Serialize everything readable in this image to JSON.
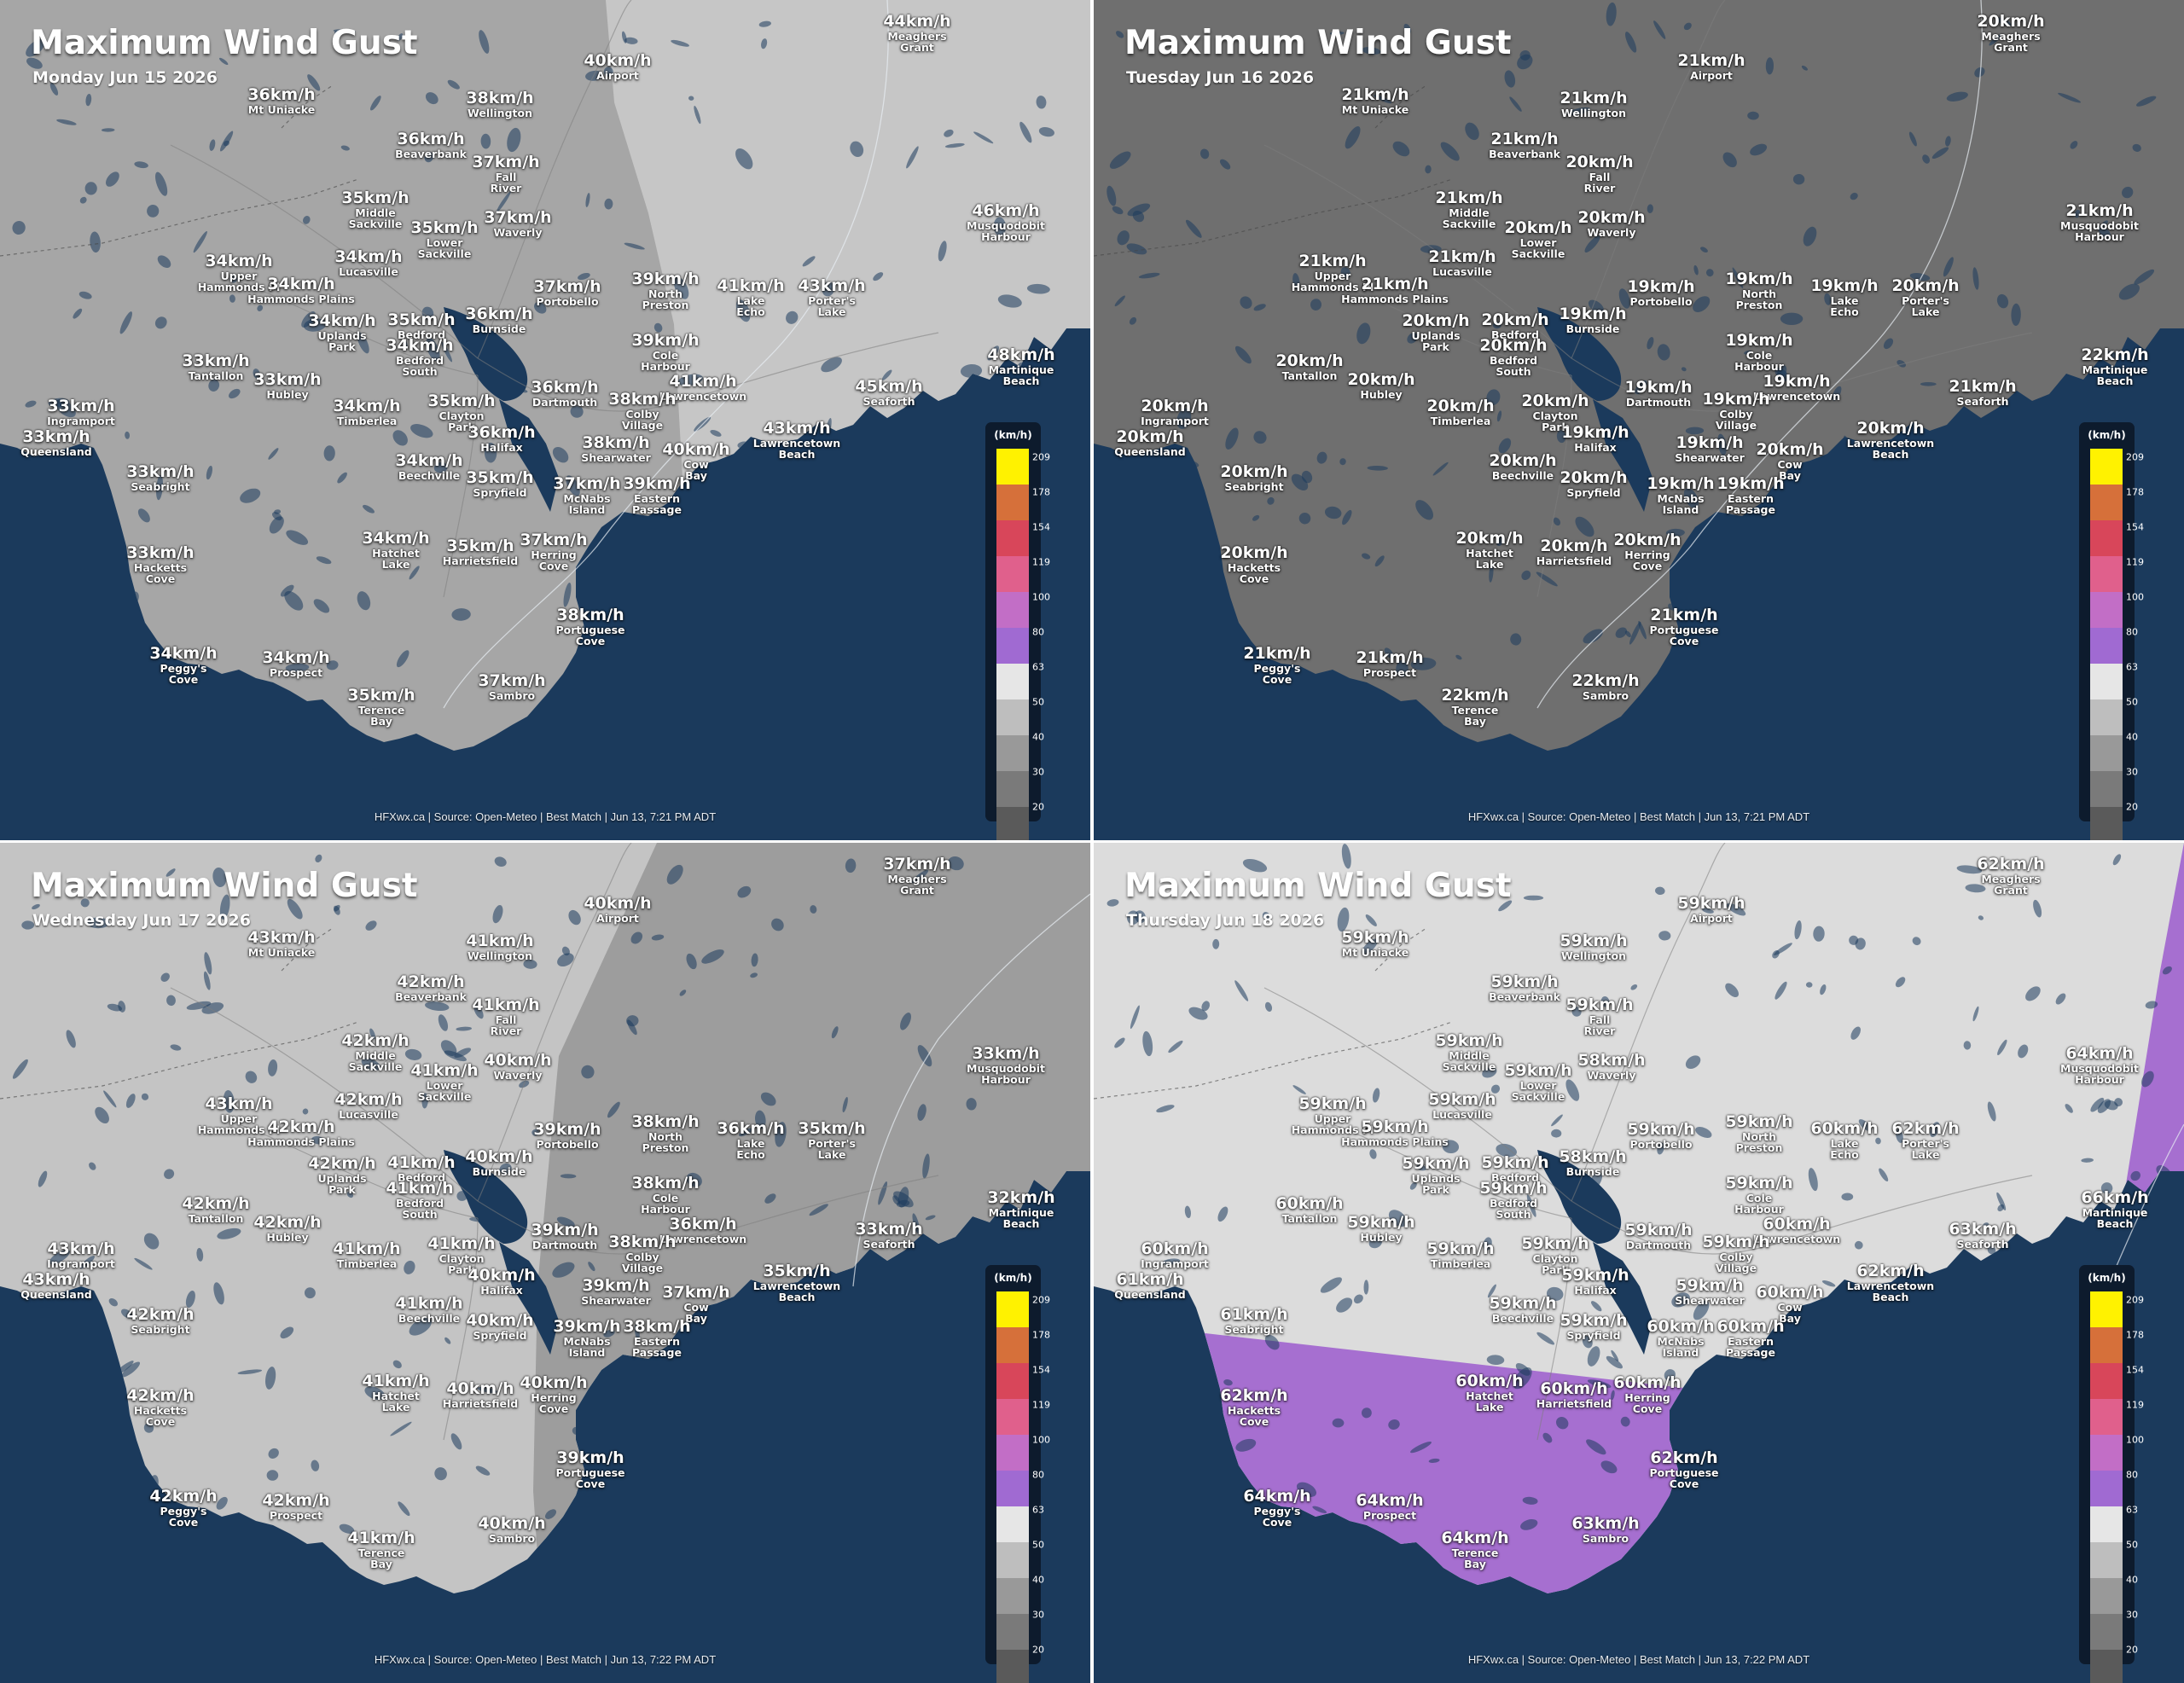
{
  "colors": {
    "ocean": "#1b3a5c",
    "land_35": "#a6a6a6",
    "land_40": "#c4c4c4",
    "land_20": "#6f6f6f",
    "land_60": "#dcdcdc",
    "purple_63_80": "#a66fd0"
  },
  "legend": {
    "unit": "(km/h)",
    "ticks": [
      "209",
      "178",
      "154",
      "119",
      "100",
      "80",
      "63",
      "50",
      "40",
      "30",
      "20"
    ],
    "swatches": [
      "#fff200",
      "#d6703a",
      "#d8465a",
      "#e0608c",
      "#c26ec6",
      "#a06ad2",
      "#e6e6e6",
      "#bebebe",
      "#999999",
      "#7a7a7a",
      "#5a5a5a"
    ]
  },
  "place_names": [
    "Meaghers Grant",
    "Airport",
    "Mt Uniacke",
    "Wellington",
    "Beaverbank",
    "Fall River",
    "Middle Sackville",
    "Lower Sackville",
    "Waverly",
    "Musquodobit Harbour",
    "Upper Hammonds Pl",
    "Lucasville",
    "Hammonds Plains",
    "Portobello",
    "North Preston",
    "Lake Echo",
    "Porter's Lake",
    "Uplands Park",
    "Bedford",
    "Burnside",
    "Bedford South",
    "Cole Harbour",
    "Martinique Beach",
    "Tantallon",
    "Hubley",
    "Dartmouth",
    "Lawrencetown",
    "Seaforth",
    "Ingramport",
    "Timberlea",
    "Colby Village",
    "Clayton Park",
    "Queensland",
    "Halifax",
    "Shearwater",
    "Lawrencetown Beach",
    "Cow Bay",
    "Beechville",
    "Seabright",
    "McNabs Island",
    "Spryfield",
    "Eastern Passage",
    "Hatchet Lake",
    "Harrietsfield",
    "Herring Cove",
    "Hacketts Cove",
    "Portuguese Cove",
    "Peggy's Cove",
    "Prospect",
    "Sambro",
    "Terence Bay"
  ],
  "panels": [
    {
      "title": "Maximum Wind Gust",
      "date": "Monday Jun 15 2026",
      "footer": "HFXwx.ca | Source: Open-Meteo | Best Match | Jun 13, 7:21 PM ADT",
      "gusts": [
        "44km/h",
        "40km/h",
        "36km/h",
        "38km/h",
        "36km/h",
        "37km/h",
        "35km/h",
        "35km/h",
        "37km/h",
        "46km/h",
        "34km/h",
        "34km/h",
        "34km/h",
        "37km/h",
        "39km/h",
        "41km/h",
        "43km/h",
        "34km/h",
        "35km/h",
        "36km/h",
        "34km/h",
        "39km/h",
        "48km/h",
        "33km/h",
        "33km/h",
        "36km/h",
        "41km/h",
        "45km/h",
        "33km/h",
        "34km/h",
        "38km/h",
        "35km/h",
        "33km/h",
        "36km/h",
        "38km/h",
        "43km/h",
        "40km/h",
        "34km/h",
        "33km/h",
        "37km/h",
        "35km/h",
        "39km/h",
        "34km/h",
        "35km/h",
        "37km/h",
        "33km/h",
        "38km/h",
        "34km/h",
        "34km/h",
        "37km/h",
        "35km/h"
      ]
    },
    {
      "title": "Maximum Wind Gust",
      "date": "Tuesday Jun 16 2026",
      "footer": "HFXwx.ca | Source: Open-Meteo | Best Match | Jun 13, 7:21 PM ADT",
      "gusts": [
        "20km/h",
        "21km/h",
        "21km/h",
        "21km/h",
        "21km/h",
        "20km/h",
        "21km/h",
        "20km/h",
        "20km/h",
        "21km/h",
        "21km/h",
        "21km/h",
        "21km/h",
        "19km/h",
        "19km/h",
        "19km/h",
        "20km/h",
        "20km/h",
        "20km/h",
        "19km/h",
        "20km/h",
        "19km/h",
        "22km/h",
        "20km/h",
        "20km/h",
        "19km/h",
        "19km/h",
        "21km/h",
        "20km/h",
        "20km/h",
        "19km/h",
        "20km/h",
        "20km/h",
        "19km/h",
        "19km/h",
        "20km/h",
        "20km/h",
        "20km/h",
        "20km/h",
        "19km/h",
        "20km/h",
        "19km/h",
        "20km/h",
        "20km/h",
        "20km/h",
        "20km/h",
        "21km/h",
        "21km/h",
        "21km/h",
        "22km/h",
        "22km/h"
      ]
    },
    {
      "title": "Maximum Wind Gust",
      "date": "Wednesday Jun 17 2026",
      "footer": "HFXwx.ca | Source: Open-Meteo | Best Match | Jun 13, 7:22 PM ADT",
      "gusts": [
        "37km/h",
        "40km/h",
        "43km/h",
        "41km/h",
        "42km/h",
        "41km/h",
        "42km/h",
        "41km/h",
        "40km/h",
        "33km/h",
        "43km/h",
        "42km/h",
        "42km/h",
        "39km/h",
        "38km/h",
        "36km/h",
        "35km/h",
        "42km/h",
        "41km/h",
        "40km/h",
        "41km/h",
        "38km/h",
        "32km/h",
        "42km/h",
        "42km/h",
        "39km/h",
        "36km/h",
        "33km/h",
        "43km/h",
        "41km/h",
        "38km/h",
        "41km/h",
        "43km/h",
        "40km/h",
        "39km/h",
        "35km/h",
        "37km/h",
        "41km/h",
        "42km/h",
        "39km/h",
        "40km/h",
        "38km/h",
        "41km/h",
        "40km/h",
        "40km/h",
        "42km/h",
        "39km/h",
        "42km/h",
        "42km/h",
        "40km/h",
        "41km/h"
      ]
    },
    {
      "title": "Maximum Wind Gust",
      "date": "Thursday Jun 18 2026",
      "footer": "HFXwx.ca | Source: Open-Meteo | Best Match | Jun 13, 7:22 PM ADT",
      "gusts": [
        "62km/h",
        "59km/h",
        "59km/h",
        "59km/h",
        "59km/h",
        "59km/h",
        "59km/h",
        "59km/h",
        "58km/h",
        "64km/h",
        "59km/h",
        "59km/h",
        "59km/h",
        "59km/h",
        "59km/h",
        "60km/h",
        "62km/h",
        "59km/h",
        "59km/h",
        "58km/h",
        "59km/h",
        "59km/h",
        "66km/h",
        "60km/h",
        "59km/h",
        "59km/h",
        "60km/h",
        "63km/h",
        "60km/h",
        "59km/h",
        "59km/h",
        "59km/h",
        "61km/h",
        "59km/h",
        "59km/h",
        "62km/h",
        "60km/h",
        "59km/h",
        "61km/h",
        "60km/h",
        "59km/h",
        "60km/h",
        "60km/h",
        "60km/h",
        "60km/h",
        "62km/h",
        "62km/h",
        "64km/h",
        "64km/h",
        "63km/h",
        "64km/h"
      ]
    }
  ]
}
